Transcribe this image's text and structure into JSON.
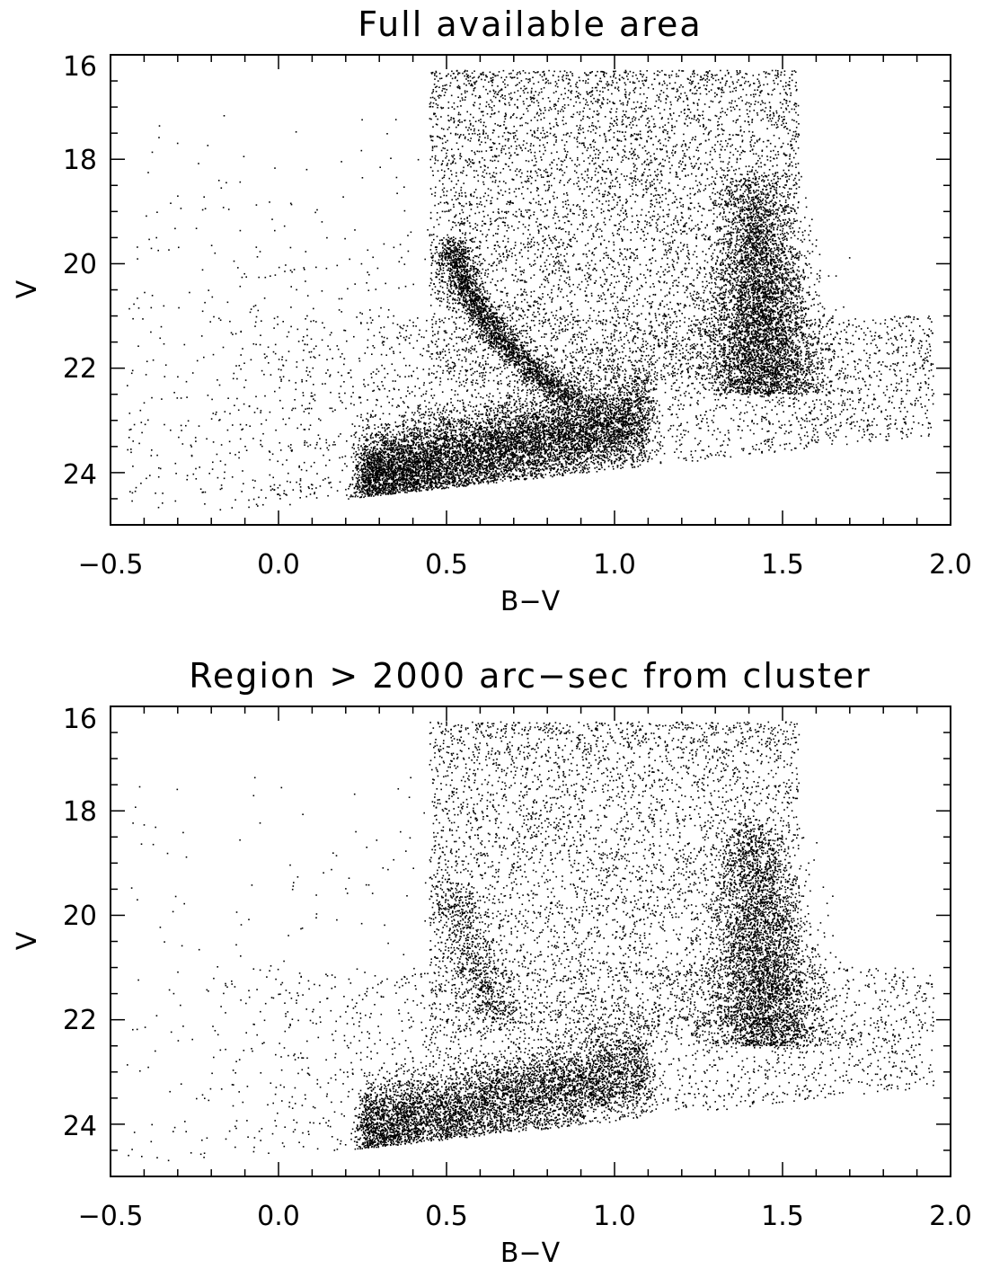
{
  "chart_data": [
    {
      "type": "scatter",
      "title": "Full available area",
      "xlabel": "B−V",
      "ylabel": "V",
      "xlim": [
        -0.5,
        2.0
      ],
      "ylim": [
        25.0,
        16.0
      ],
      "y_inverted": true,
      "xticks": [
        -0.5,
        0.0,
        0.5,
        1.0,
        1.5,
        2.0
      ],
      "xtick_labels": [
        "−0.5",
        "0.0",
        "0.5",
        "1.0",
        "1.5",
        "2.0"
      ],
      "yticks": [
        16,
        18,
        20,
        22,
        24
      ],
      "ytick_labels": [
        "16",
        "18",
        "20",
        "22",
        "24"
      ],
      "marker_color": "#000000",
      "grid": false,
      "legend": "none",
      "point_count_approx": 25000,
      "features": [
        {
          "x": [
            0.5,
            0.75
          ],
          "y": [
            19.5,
            22.5
          ]
        },
        {
          "x": [
            0.3,
            1.0
          ],
          "y": [
            22.5,
            24.5
          ]
        },
        {
          "x": [
            1.35,
            1.6
          ],
          "y": [
            18.0,
            22.5
          ]
        },
        {
          "x": [
            0.45,
            1.55
          ],
          "y": [
            16.4,
            19.0
          ]
        }
      ],
      "sample_points": [
        [
          0.55,
          20.3
        ],
        [
          0.6,
          21.0
        ],
        [
          0.7,
          21.6
        ],
        [
          0.85,
          22.2
        ],
        [
          0.55,
          23.5
        ],
        [
          0.4,
          24.0
        ],
        [
          0.9,
          23.2
        ],
        [
          1.42,
          21.5
        ],
        [
          1.45,
          22.0
        ],
        [
          1.4,
          19.5
        ],
        [
          0.65,
          17.5
        ],
        [
          1.1,
          18.5
        ],
        [
          1.6,
          23.0
        ],
        [
          -0.2,
          24.5
        ],
        [
          0.05,
          24.4
        ]
      ]
    },
    {
      "type": "scatter",
      "title": "Region > 2000 arc−sec from cluster",
      "xlabel": "B−V",
      "ylabel": "V",
      "xlim": [
        -0.5,
        2.0
      ],
      "ylim": [
        25.0,
        16.0
      ],
      "y_inverted": true,
      "xticks": [
        -0.5,
        0.0,
        0.5,
        1.0,
        1.5,
        2.0
      ],
      "xtick_labels": [
        "−0.5",
        "0.0",
        "0.5",
        "1.0",
        "1.5",
        "2.0"
      ],
      "yticks": [
        16,
        18,
        20,
        22,
        24
      ],
      "ytick_labels": [
        "16",
        "18",
        "20",
        "22",
        "24"
      ],
      "marker_color": "#000000",
      "grid": false,
      "legend": "none",
      "point_count_approx": 16000,
      "features": [
        {
          "x": [
            0.5,
            0.7
          ],
          "y": [
            19.5,
            21.8
          ]
        },
        {
          "x": [
            0.3,
            1.0
          ],
          "y": [
            22.7,
            24.5
          ]
        },
        {
          "x": [
            1.35,
            1.6
          ],
          "y": [
            18.5,
            22.5
          ]
        },
        {
          "x": [
            0.45,
            1.55
          ],
          "y": [
            16.4,
            19.5
          ]
        }
      ],
      "sample_points": [
        [
          0.52,
          20.0
        ],
        [
          0.65,
          21.5
        ],
        [
          0.55,
          23.8
        ],
        [
          0.9,
          23.3
        ],
        [
          1.42,
          21.8
        ],
        [
          1.45,
          22.2
        ],
        [
          0.7,
          17.5
        ],
        [
          1.1,
          19.0
        ],
        [
          1.6,
          23.0
        ],
        [
          -0.2,
          24.5
        ],
        [
          0.05,
          24.4
        ],
        [
          1.8,
          22.0
        ]
      ]
    }
  ]
}
